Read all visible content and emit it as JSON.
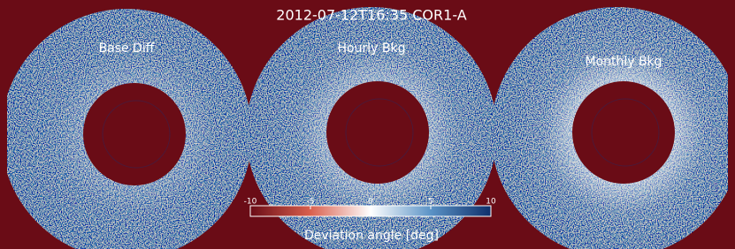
{
  "header": {
    "title": "2012-07-12T16:35 COR1-A"
  },
  "panels": [
    {
      "label": "Base Diff"
    },
    {
      "label": "Hourly Bkg"
    },
    {
      "label": "Monthly Bkg"
    }
  ],
  "colorbar": {
    "lim": [
      -10,
      10
    ],
    "ticks": [
      -10,
      -5,
      0,
      5,
      10
    ],
    "label": "Deviation angle [deg]"
  }
}
